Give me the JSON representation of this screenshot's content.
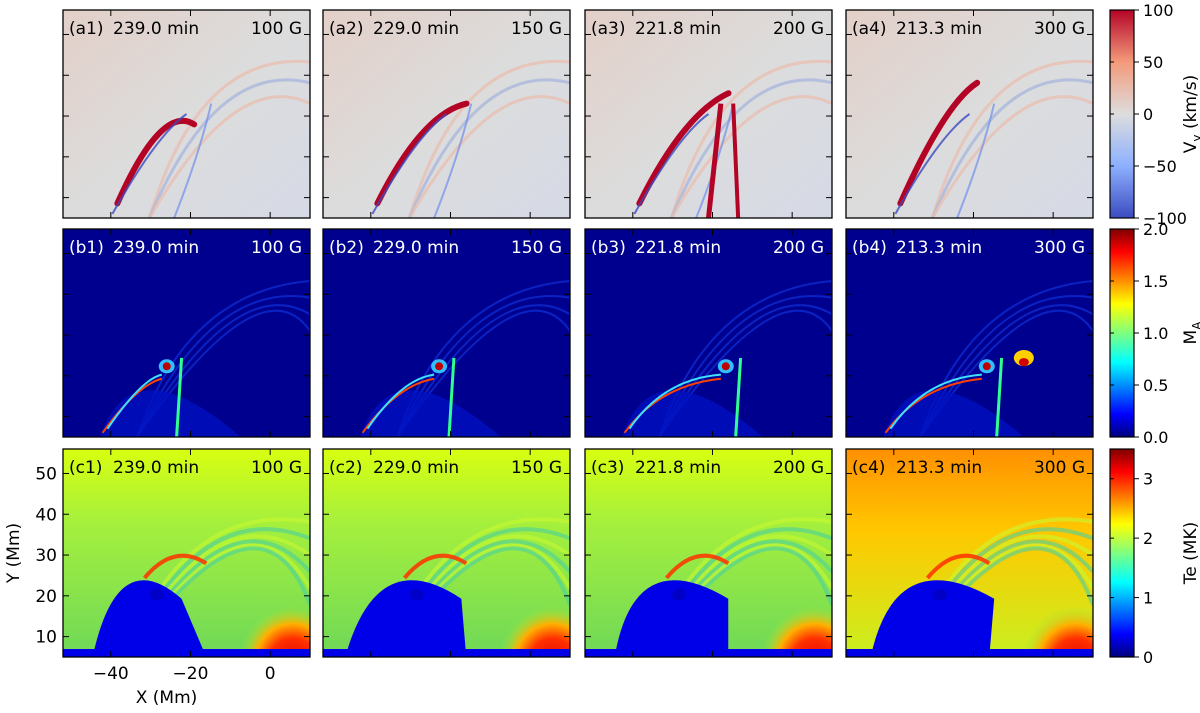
{
  "chart_data": {
    "type": "heatmap",
    "layout": {
      "rows": 3,
      "cols": 4
    },
    "columns": [
      {
        "time": "239.0 min",
        "field": "100 G"
      },
      {
        "time": "229.0 min",
        "field": "150 G"
      },
      {
        "time": "221.8 min",
        "field": "200 G"
      },
      {
        "time": "213.3 min",
        "field": "300 G"
      }
    ],
    "rows": [
      {
        "prefix": "a",
        "quantity": "Vy",
        "colorbar_label": "V",
        "colorbar_sub": "y",
        "colorbar_unit": "(km/s)",
        "colormap": "coolwarm",
        "clim": [
          -100,
          100
        ],
        "ticks": [
          "100",
          "50",
          "0",
          "−50",
          "−100"
        ]
      },
      {
        "prefix": "b",
        "quantity": "MA",
        "colorbar_label": "M",
        "colorbar_sub": "A",
        "colorbar_unit": "",
        "colormap": "jet",
        "clim": [
          0.0,
          2.0
        ],
        "ticks": [
          "2.0",
          "1.5",
          "1.0",
          "0.5",
          "0.0"
        ]
      },
      {
        "prefix": "c",
        "quantity": "Te",
        "colorbar_label": "Te (MK)",
        "colorbar_sub": "",
        "colorbar_unit": "",
        "colormap": "jet",
        "clim": [
          0,
          3.5
        ],
        "ticks": [
          "3",
          "2",
          "1",
          "0"
        ],
        "tick_values": [
          3,
          2,
          1,
          0
        ]
      }
    ],
    "xaxis": {
      "label": "X (Mm)",
      "range": [
        -52,
        10
      ],
      "ticks": [
        -40,
        -20,
        0
      ],
      "tick_labels": [
        "−40",
        "−20",
        "0"
      ]
    },
    "yaxis": {
      "label": "Y (Mm)",
      "range": [
        5,
        56
      ],
      "ticks": [
        10,
        20,
        30,
        40,
        50
      ],
      "tick_labels": [
        "10",
        "20",
        "30",
        "40",
        "50"
      ]
    },
    "colors": {
      "vy_background": "#dcdcdc",
      "ma_background": "#00008f",
      "te_background": "#7fe04a"
    }
  }
}
